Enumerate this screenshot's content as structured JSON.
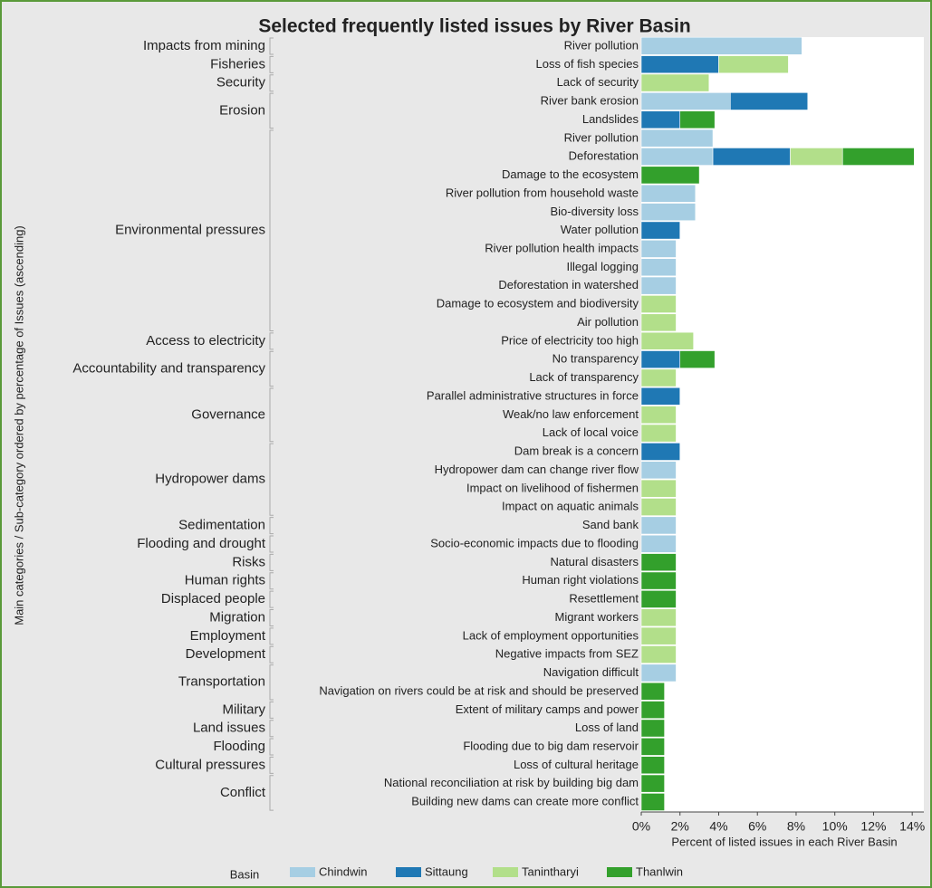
{
  "chart_data": {
    "type": "stacked-barh",
    "title": "Selected frequently listed issues by River Basin",
    "ylabel": "Main categories / Sub-category ordered by percentage of Issues (ascending)",
    "xlabel": "Percent of listed issues in each River Basin",
    "legend_title": "Basin",
    "groups": [
      {
        "name": "Impacts from mining",
        "items": [
          "River pollution"
        ]
      },
      {
        "name": "Fisheries",
        "items": [
          "Loss of fish species"
        ]
      },
      {
        "name": "Security",
        "items": [
          "Lack of security"
        ]
      },
      {
        "name": "Erosion",
        "items": [
          "River bank erosion",
          "Landslides"
        ]
      },
      {
        "name": "Environmental pressures",
        "items": [
          "River pollution",
          "Deforestation",
          "Damage to the ecosystem",
          "River pollution from household waste",
          "Bio-diversity loss",
          "Water pollution",
          "River pollution health impacts",
          "Illegal logging",
          "Deforestation in watershed",
          "Damage to ecosystem and biodiversity",
          "Air pollution"
        ]
      },
      {
        "name": "Access to electricity",
        "items": [
          "Price of electricity too high"
        ]
      },
      {
        "name": "Accountability and transparency",
        "items": [
          "No transparency",
          "Lack of transparency"
        ]
      },
      {
        "name": "Governance",
        "items": [
          "Parallel administrative structures in force",
          "Weak/no law enforcement",
          "Lack of local voice"
        ]
      },
      {
        "name": "Hydropower dams",
        "items": [
          "Dam break is a concern",
          "Hydropower dam can change river flow",
          "Impact on livelihood of fishermen",
          "Impact on aquatic animals"
        ]
      },
      {
        "name": "Sedimentation",
        "items": [
          "Sand bank"
        ]
      },
      {
        "name": "Flooding and drought",
        "items": [
          "Socio-economic impacts due to flooding"
        ]
      },
      {
        "name": "Risks",
        "items": [
          "Natural disasters"
        ]
      },
      {
        "name": "Human rights",
        "items": [
          "Human right violations"
        ]
      },
      {
        "name": "Displaced people",
        "items": [
          "Resettlement"
        ]
      },
      {
        "name": "Migration",
        "items": [
          "Migrant workers"
        ]
      },
      {
        "name": "Employment",
        "items": [
          "Lack of employment opportunities"
        ]
      },
      {
        "name": "Development",
        "items": [
          "Negative impacts from SEZ"
        ]
      },
      {
        "name": "Transportation",
        "items": [
          "Navigation difficult",
          "Navigation on rivers could be at risk and should be preserved"
        ]
      },
      {
        "name": "Military",
        "items": [
          "Extent of military camps and power"
        ]
      },
      {
        "name": "Land issues",
        "items": [
          "Loss of land"
        ]
      },
      {
        "name": "Flooding",
        "items": [
          "Flooding due to big dam reservoir"
        ]
      },
      {
        "name": "Cultural pressures",
        "items": [
          "Loss of cultural heritage"
        ]
      },
      {
        "name": "Conflict",
        "items": [
          "National reconciliation at risk by building big dam",
          "Building new dams can create more conflict"
        ]
      }
    ],
    "series": [
      {
        "name": "Chindwin",
        "color": "#a6cee3",
        "values": [
          8.3,
          null,
          null,
          4.6,
          null,
          3.7,
          3.7,
          null,
          2.8,
          2.8,
          null,
          1.8,
          1.8,
          1.8,
          null,
          null,
          null,
          null,
          null,
          null,
          null,
          null,
          null,
          1.8,
          null,
          null,
          1.8,
          1.8,
          null,
          null,
          null,
          null,
          null,
          null,
          1.8,
          null,
          null,
          null,
          null,
          null,
          null,
          null
        ]
      },
      {
        "name": "Sittaung",
        "color": "#1f78b4",
        "values": [
          null,
          4.0,
          null,
          4.0,
          2.0,
          null,
          4.0,
          null,
          null,
          null,
          2.0,
          null,
          null,
          null,
          null,
          null,
          null,
          2.0,
          null,
          2.0,
          null,
          null,
          2.0,
          null,
          null,
          null,
          null,
          null,
          null,
          null,
          null,
          null,
          null,
          null,
          null,
          null,
          null,
          null,
          null,
          null,
          null,
          null
        ]
      },
      {
        "name": "Tanintharyi",
        "color": "#b2df8a",
        "values": [
          null,
          3.6,
          3.5,
          null,
          null,
          null,
          2.7,
          null,
          null,
          null,
          null,
          null,
          null,
          null,
          1.8,
          1.8,
          2.7,
          null,
          1.8,
          null,
          1.8,
          1.8,
          null,
          null,
          1.8,
          1.8,
          null,
          null,
          null,
          null,
          null,
          1.8,
          1.8,
          1.8,
          null,
          null,
          null,
          null,
          null,
          null,
          null,
          null
        ]
      },
      {
        "name": "Thanlwin",
        "color": "#33a02c",
        "values": [
          null,
          null,
          null,
          null,
          1.8,
          null,
          3.7,
          3.0,
          null,
          null,
          null,
          null,
          null,
          null,
          null,
          null,
          null,
          1.8,
          null,
          null,
          null,
          null,
          null,
          null,
          null,
          null,
          null,
          null,
          1.8,
          1.8,
          1.8,
          null,
          null,
          null,
          null,
          1.2,
          1.2,
          1.2,
          1.2,
          1.2,
          1.2,
          1.2
        ]
      }
    ],
    "xlim": [
      0,
      14.6
    ],
    "xticks": [
      {
        "value": 0,
        "label": "0%"
      },
      {
        "value": 2,
        "label": "2%"
      },
      {
        "value": 4,
        "label": "4%"
      },
      {
        "value": 6,
        "label": "6%"
      },
      {
        "value": 8,
        "label": "8%"
      },
      {
        "value": 10,
        "label": "10%"
      },
      {
        "value": 12,
        "label": "12%"
      },
      {
        "value": 14,
        "label": "14%"
      }
    ]
  }
}
